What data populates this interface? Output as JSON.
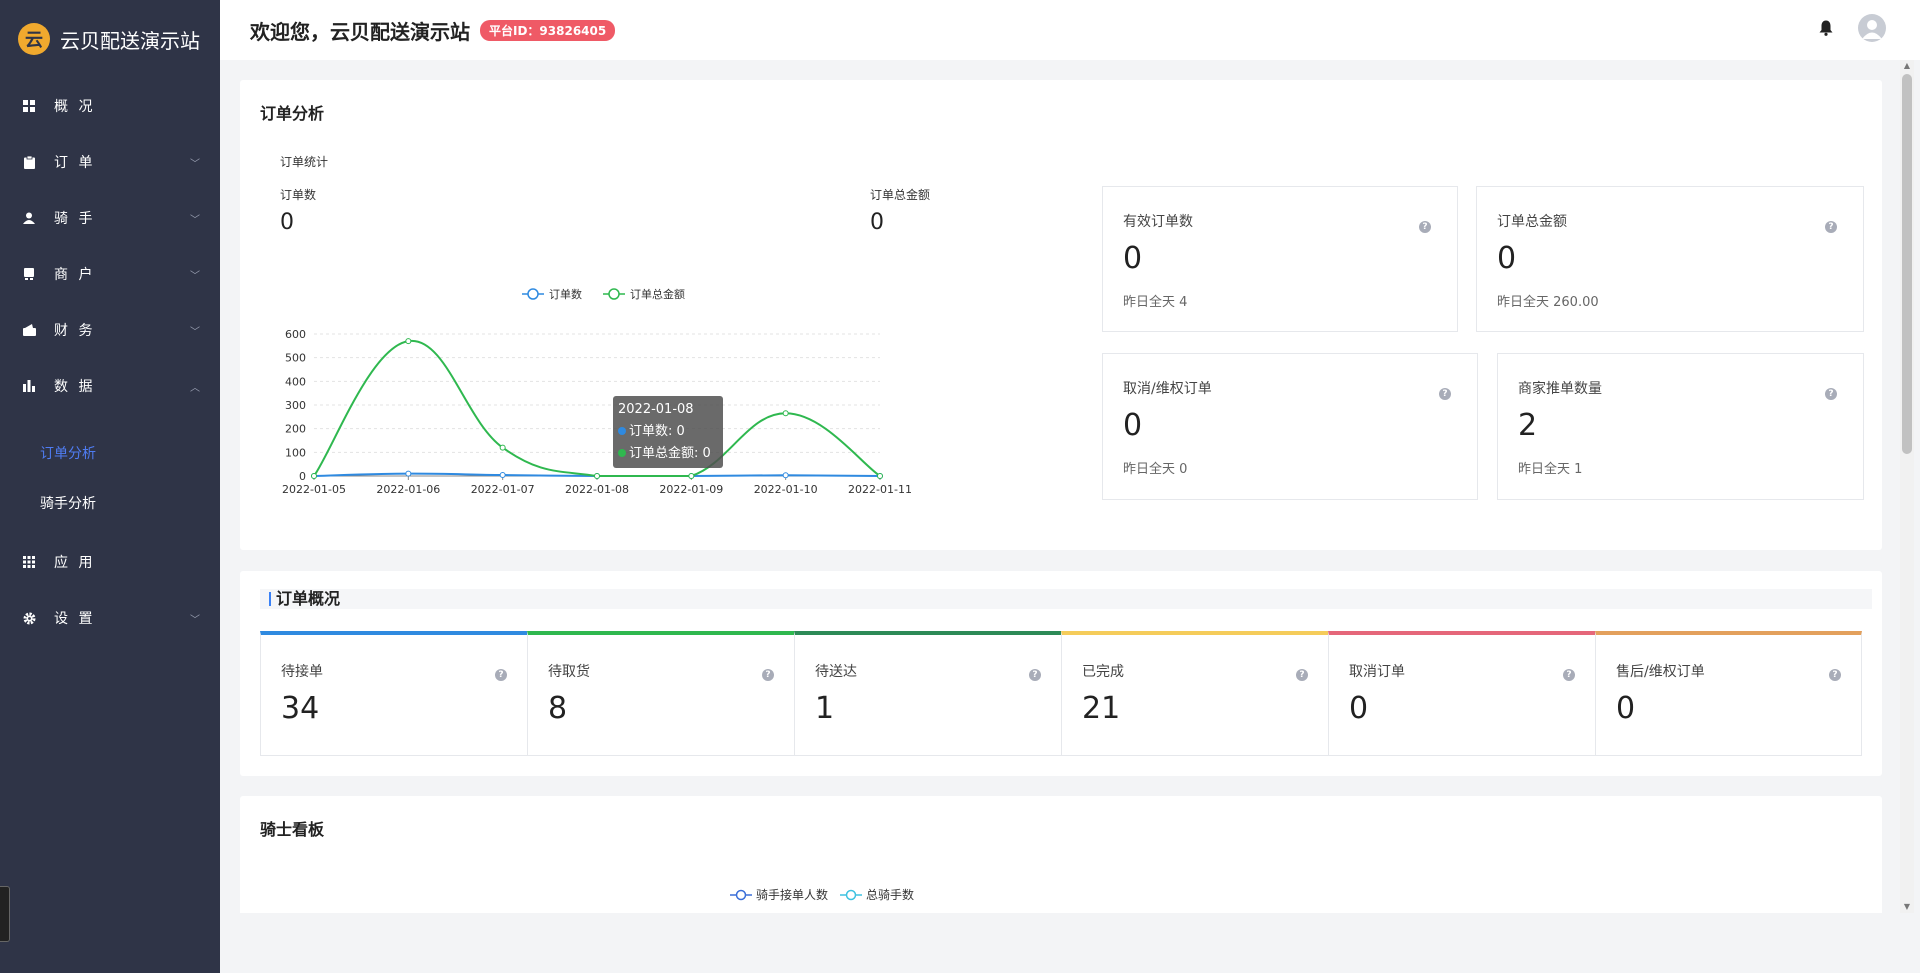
{
  "app": {
    "brand_name": "云贝配送演示站",
    "brand_logo_glyph": "云"
  },
  "topbar": {
    "welcome": "欢迎您，云贝配送演示站",
    "platform_id": "平台ID：93826405"
  },
  "sidebar": {
    "items": [
      {
        "label": "概 况",
        "icon": "dashboard-icon",
        "has_chevron": false
      },
      {
        "label": "订 单",
        "icon": "clipboard-icon",
        "has_chevron": true,
        "chevron": "﹀"
      },
      {
        "label": "骑 手",
        "icon": "user-icon",
        "has_chevron": true,
        "chevron": "﹀"
      },
      {
        "label": "商 户",
        "icon": "store-icon",
        "has_chevron": true,
        "chevron": "﹀"
      },
      {
        "label": "财 务",
        "icon": "wallet-icon",
        "has_chevron": true,
        "chevron": "﹀"
      },
      {
        "label": "数 据",
        "icon": "bar-chart-icon",
        "has_chevron": true,
        "chevron": "︿"
      },
      {
        "label": "应 用",
        "icon": "grid-icon",
        "has_chevron": false
      },
      {
        "label": "设 置",
        "icon": "gear-icon",
        "has_chevron": true,
        "chevron": "﹀"
      }
    ],
    "subitems": [
      {
        "label": "订单分析",
        "active": true
      },
      {
        "label": "骑手分析",
        "active": false
      }
    ]
  },
  "order_analysis": {
    "title": "订单分析",
    "chart_header": "订单统计",
    "order_count_label": "订单数",
    "order_count_value": "0",
    "order_amount_label": "订单总金额",
    "order_amount_value": "0",
    "tooltip": {
      "date": "2022-01-08",
      "line1": "订单数: 0",
      "line2": "订单总金额: 0"
    },
    "stats": [
      {
        "label": "有效订单数",
        "value": "0",
        "sub": "昨日全天 4"
      },
      {
        "label": "订单总金额",
        "value": "0",
        "sub": "昨日全天 260.00"
      },
      {
        "label": "取消/维权订单",
        "value": "0",
        "sub": "昨日全天 0"
      },
      {
        "label": "商家推单数量",
        "value": "2",
        "sub": "昨日全天 1"
      }
    ],
    "help_glyph": "?"
  },
  "chart_data": {
    "type": "line",
    "x": [
      "2022-01-05",
      "2022-01-06",
      "2022-01-07",
      "2022-01-08",
      "2022-01-09",
      "2022-01-10",
      "2022-01-11"
    ],
    "series": [
      {
        "name": "订单数",
        "values": [
          0,
          10,
          4,
          0,
          0,
          3,
          0
        ],
        "color": "#2f8ae0"
      },
      {
        "name": "订单总金额",
        "values": [
          0,
          570,
          120,
          0,
          0,
          265,
          0
        ],
        "color": "#2fb84f"
      }
    ],
    "yticks": [
      "0",
      "100",
      "200",
      "300",
      "400",
      "500",
      "600"
    ],
    "ylim": [
      0,
      600
    ],
    "grid": true,
    "legend_position": "top-center"
  },
  "order_overview": {
    "title": "订单概况",
    "items": [
      {
        "label": "待接单",
        "value": "34",
        "color": "#2f8ae0"
      },
      {
        "label": "待取货",
        "value": "8",
        "color": "#2fb84f"
      },
      {
        "label": "待送达",
        "value": "1",
        "color": "#2d8a57"
      },
      {
        "label": "已完成",
        "value": "21",
        "color": "#f5cc5a"
      },
      {
        "label": "取消订单",
        "value": "0",
        "color": "#e5677a"
      },
      {
        "label": "售后/维权订单",
        "value": "0",
        "color": "#e3a05c"
      }
    ]
  },
  "rider_board": {
    "title": "骑士看板",
    "legend": [
      {
        "name": "骑手接单人数",
        "color": "#3a6fd8"
      },
      {
        "name": "总骑手数",
        "color": "#3ec2e0"
      }
    ]
  },
  "scrollbar": {
    "up": "▲",
    "down": "▼"
  }
}
